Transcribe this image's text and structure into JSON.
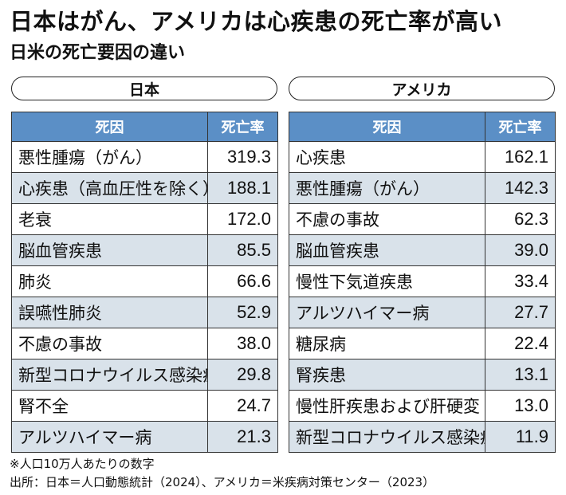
{
  "title": "日本はがん、アメリカは心疾患の死亡率が高い",
  "subtitle": "日米の死亡要因の違い",
  "japan": {
    "label": "日本",
    "col_cause": "死因",
    "col_rate": "死亡率",
    "rows": [
      {
        "cause": "悪性腫瘍（がん）",
        "rate": "319.3"
      },
      {
        "cause": "心疾患（高血圧性を除く）",
        "rate": "188.1"
      },
      {
        "cause": "老衰",
        "rate": "172.0"
      },
      {
        "cause": "脳血管疾患",
        "rate": "85.5"
      },
      {
        "cause": "肺炎",
        "rate": "66.6"
      },
      {
        "cause": "誤嚥性肺炎",
        "rate": "52.9"
      },
      {
        "cause": "不慮の事故",
        "rate": "38.0"
      },
      {
        "cause": "新型コロナウイルス感染症",
        "rate": "29.8"
      },
      {
        "cause": "腎不全",
        "rate": "24.7"
      },
      {
        "cause": "アルツハイマー病",
        "rate": "21.3"
      }
    ]
  },
  "usa": {
    "label": "アメリカ",
    "col_cause": "死因",
    "col_rate": "死亡率",
    "rows": [
      {
        "cause": "心疾患",
        "rate": "162.1"
      },
      {
        "cause": "悪性腫瘍（がん）",
        "rate": "142.3"
      },
      {
        "cause": "不慮の事故",
        "rate": "62.3"
      },
      {
        "cause": "脳血管疾患",
        "rate": "39.0"
      },
      {
        "cause": "慢性下気道疾患",
        "rate": "33.4"
      },
      {
        "cause": "アルツハイマー病",
        "rate": "27.7"
      },
      {
        "cause": "糖尿病",
        "rate": "22.4"
      },
      {
        "cause": "腎疾患",
        "rate": "13.1"
      },
      {
        "cause": "慢性肝疾患および肝硬変",
        "rate": "13.0"
      },
      {
        "cause": "新型コロナウイルス感染症",
        "rate": "11.9"
      }
    ]
  },
  "footnotes": {
    "note": "※人口10万人あたりの数字",
    "source": "出所：日本＝人口動態統計（2024）、アメリカ＝米疾病対策センター（2023）"
  },
  "colors": {
    "header_bg": "#5b8fc6",
    "stripe_bg": "#d9e2ea"
  }
}
